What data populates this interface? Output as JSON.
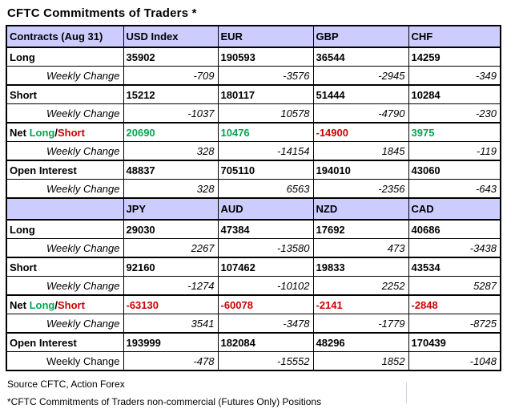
{
  "title": "CFTC Commitments of Traders *",
  "colors": {
    "header_bg": "#CCCCFF",
    "positive": "#00A651",
    "negative": "#CC0000",
    "gridline": "#C9D5E8"
  },
  "net_label_parts": [
    {
      "text": "Net ",
      "color": "#000000"
    },
    {
      "text": "Long",
      "color": "#00A651"
    },
    {
      "text": "/",
      "color": "#000000"
    },
    {
      "text": "Short",
      "color": "#CC0000"
    }
  ],
  "table": {
    "sections": [
      {
        "header": [
          "Contracts (Aug 31)",
          "USD Index",
          "EUR",
          "GBP",
          "CHF"
        ],
        "rows": [
          {
            "label": "Long",
            "type": "value",
            "values": [
              "35902",
              "190593",
              "36544",
              "14259"
            ]
          },
          {
            "label": "Weekly Change",
            "type": "change",
            "values": [
              "-709",
              "-3576",
              "-2945",
              "-349"
            ]
          },
          {
            "label": "Short",
            "type": "value",
            "values": [
              "15212",
              "180117",
              "51444",
              "10284"
            ]
          },
          {
            "label": "Weekly Change",
            "type": "change",
            "values": [
              "-1037",
              "10578",
              "-4790",
              "-230"
            ]
          },
          {
            "label": "Net Long/Short",
            "type": "net",
            "values": [
              "20690",
              "10476",
              "-14900",
              "3975"
            ]
          },
          {
            "label": "Weekly Change",
            "type": "change",
            "values": [
              "328",
              "-14154",
              "1845",
              "-119"
            ]
          },
          {
            "label": "Open Interest",
            "type": "value",
            "values": [
              "48837",
              "705110",
              "194010",
              "43060"
            ]
          },
          {
            "label": "Weekly Change",
            "type": "change",
            "values": [
              "328",
              "6563",
              "-2356",
              "-643"
            ]
          }
        ]
      },
      {
        "header": [
          "",
          "JPY",
          "AUD",
          "NZD",
          "CAD"
        ],
        "rows": [
          {
            "label": "Long",
            "type": "value",
            "values": [
              "29030",
              "47384",
              "17692",
              "40686"
            ]
          },
          {
            "label": "Weekly Change",
            "type": "change",
            "values": [
              "2267",
              "-13580",
              "473",
              "-3438"
            ]
          },
          {
            "label": "Short",
            "type": "value",
            "values": [
              "92160",
              "107462",
              "19833",
              "43534"
            ]
          },
          {
            "label": "Weekly Change",
            "type": "change",
            "values": [
              "-1274",
              "-10102",
              "2252",
              "5287"
            ]
          },
          {
            "label": "Net Long/Short",
            "type": "net",
            "values": [
              "-63130",
              "-60078",
              "-2141",
              "-2848"
            ]
          },
          {
            "label": "Weekly Change",
            "type": "change",
            "values": [
              "3541",
              "-3478",
              "-1779",
              "-8725"
            ]
          },
          {
            "label": "Open Interest",
            "type": "value",
            "values": [
              "193999",
              "182084",
              "48296",
              "170439"
            ]
          },
          {
            "label": "Weekly Change",
            "type": "change",
            "values": [
              "-478",
              "-15552",
              "1852",
              "-1048"
            ],
            "upright_label": true
          }
        ]
      }
    ]
  },
  "footer": {
    "source": "Source CFTC, Action Forex",
    "note": "*CFTC Commitments of Traders non-commercial (Futures Only) Positions"
  }
}
